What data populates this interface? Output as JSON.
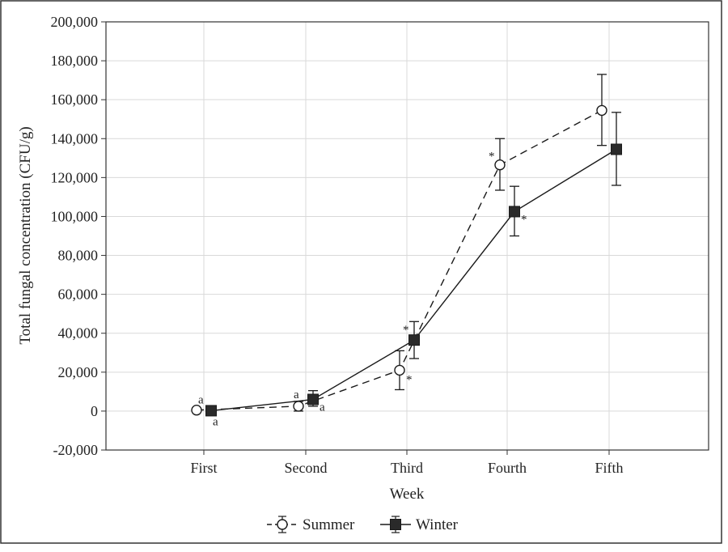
{
  "chart_data": {
    "type": "line",
    "xlabel": "Week",
    "ylabel": "Total fungal concentration (CFU/g)",
    "categories": [
      "First",
      "Second",
      "Third",
      "Fourth",
      "Fifth"
    ],
    "ylim": [
      -20000,
      200000
    ],
    "yticks": [
      -20000,
      0,
      20000,
      40000,
      60000,
      80000,
      100000,
      120000,
      140000,
      160000,
      180000,
      200000
    ],
    "ytick_labels": [
      "-20,000",
      "0",
      "20,000",
      "40,000",
      "60,000",
      "80,000",
      "100,000",
      "120,000",
      "140,000",
      "160,000",
      "180,000",
      "200,000"
    ],
    "grid": true,
    "legend_position": "bottom-center",
    "series": [
      {
        "name": "Summer",
        "marker": "open-circle",
        "line_style": "dashed",
        "values": [
          500,
          2500,
          21000,
          126500,
          154500
        ],
        "err_low": [
          0,
          0,
          11000,
          113500,
          136500
        ],
        "err_high": [
          1000,
          5000,
          31000,
          140000,
          173000
        ],
        "annotations": [
          "a",
          "a",
          "*",
          "*",
          ""
        ]
      },
      {
        "name": "Winter",
        "marker": "filled-square",
        "line_style": "solid",
        "values": [
          200,
          6000,
          36500,
          102500,
          134500
        ],
        "err_low": [
          -500,
          2500,
          27000,
          90000,
          116000
        ],
        "err_high": [
          1000,
          10500,
          46000,
          115500,
          153500
        ],
        "annotations": [
          "a",
          "a",
          "*",
          "*",
          ""
        ]
      }
    ],
    "colors": {
      "line": "#1a1a1a",
      "grid": "#d9d9d9",
      "frame": "#333333"
    }
  }
}
